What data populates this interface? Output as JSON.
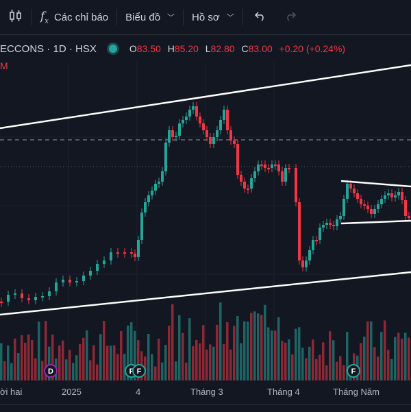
{
  "toolbar": {
    "indicators_label": "Các chỉ báo",
    "chart_type_label": "Biểu đồ",
    "profile_label": "Hồ sơ",
    "icons": [
      "candles-icon",
      "fx-icon",
      "undo-icon",
      "redo-icon"
    ]
  },
  "legend": {
    "symbol": "ECCONS · 1D · HSX",
    "open_key": "O",
    "open": "83.50",
    "high_key": "H",
    "high": "85.20",
    "low_key": "L",
    "low": "82.80",
    "close_key": "C",
    "close": "83.00",
    "change": "+0.20 (+0.24%)",
    "vol_label": "M"
  },
  "xaxis": {
    "labels": [
      "ời hai",
      "2025",
      "4",
      "Tháng 3",
      "Tháng 4",
      "Tháng Năm"
    ]
  },
  "markers": {
    "dividend": "D",
    "financial": "F"
  },
  "colors": {
    "up": "#26a69a",
    "down": "#f23645",
    "background": "#131722"
  }
}
